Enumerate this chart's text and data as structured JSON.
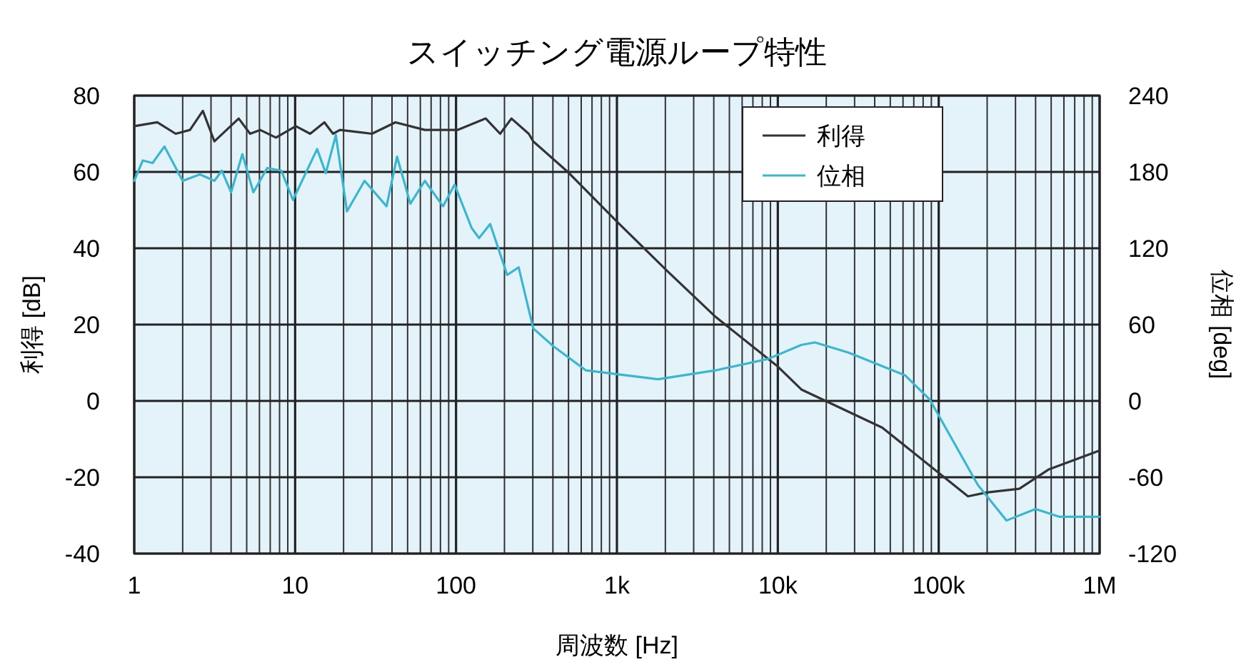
{
  "chart_data": {
    "type": "line",
    "title": "スイッチング電源ループ特性",
    "xlabel": "周波数 [Hz]",
    "ylabel": "利得 [dB]",
    "y2label": "位相 [deg]",
    "log": "x",
    "grid": true,
    "legend": "top right",
    "line_style": "solid",
    "marker": "none",
    "xlim": [
      1,
      1000000
    ],
    "xticks": [
      1,
      10,
      100,
      {
        "value": 1000,
        "label": "1k"
      },
      {
        "value": 10000,
        "label": "10k"
      },
      {
        "value": 100000,
        "label": "100k"
      },
      {
        "value": 1000000,
        "label": "1M"
      }
    ],
    "ylim": [
      -40,
      80
    ],
    "yticks": [
      -40,
      -20,
      0,
      20,
      40,
      60,
      80
    ],
    "y2lim": [
      -120,
      240
    ],
    "y2ticks": [
      -120,
      -60,
      0,
      60,
      120,
      180,
      240
    ],
    "series": [
      {
        "name": "利得",
        "color": "#333333",
        "x": [
          1,
          1.39,
          1.81,
          2.22,
          2.67,
          3.15,
          4.46,
          5.25,
          6.06,
          7.6,
          10.1,
          12.4,
          15.2,
          17.2,
          19,
          30,
          42,
          64,
          102,
          153,
          188,
          221,
          283,
          302,
          495,
          1000,
          2060,
          4110,
          10000,
          14000,
          44600,
          152000,
          198000,
          317000,
          480000,
          1000000
        ],
        "values": [
          72,
          73,
          70,
          71,
          76,
          68,
          74,
          70,
          71,
          69,
          72,
          70,
          73,
          70,
          71,
          70,
          73,
          71,
          71,
          74,
          70,
          74,
          70,
          68,
          60,
          47,
          34,
          22,
          9,
          3,
          -7,
          -25,
          -24,
          -23,
          -18,
          -13
        ]
      },
      {
        "name": "位相",
        "color": "#3ab7d0",
        "axis": "y2",
        "x": [
          1,
          1.13,
          1.3,
          1.54,
          2,
          2.56,
          3.15,
          3.5,
          4,
          4.7,
          5.5,
          6.7,
          8.2,
          9.7,
          13.7,
          15.5,
          17.9,
          21,
          27,
          37,
          43,
          52,
          64,
          83,
          98,
          125,
          139,
          163,
          208,
          245,
          302,
          402,
          642,
          1800,
          4100,
          8700,
          14000,
          17000,
          27500,
          62000,
          88000,
          175000,
          264000,
          400000,
          560000,
          1000000
        ],
        "values": [
          173,
          189,
          187,
          200,
          173,
          178,
          173,
          181,
          164,
          194,
          164,
          183,
          181,
          158,
          198,
          179,
          209,
          149,
          173,
          153,
          192,
          155,
          173,
          153,
          170,
          136,
          128,
          139,
          99,
          105,
          57,
          43,
          24,
          17,
          24,
          33,
          44,
          46,
          38,
          20,
          1,
          -66,
          -94,
          -85,
          -91,
          -91
        ]
      }
    ]
  }
}
